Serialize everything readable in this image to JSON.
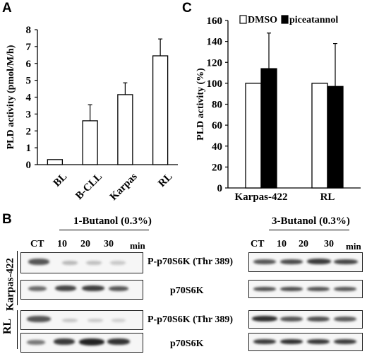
{
  "panels": {
    "a": "A",
    "b": "B",
    "c": "C"
  },
  "chart_data": [
    {
      "type": "bar",
      "panel": "A",
      "title": "",
      "xlabel": "",
      "ylabel": "PLD activity  (pmol/M/h)",
      "categories": [
        "BL",
        "B-CLL",
        "Karpas",
        "RL"
      ],
      "values": [
        0.3,
        2.6,
        4.15,
        6.45
      ],
      "errors": [
        0.0,
        0.95,
        0.7,
        1.0
      ],
      "ylim": [
        0,
        8
      ],
      "yticks": [
        0,
        1,
        2,
        3,
        4,
        5,
        6,
        7,
        8
      ],
      "bar_color": "#ffffff",
      "grid": false
    },
    {
      "type": "bar",
      "panel": "C",
      "title": "",
      "xlabel": "",
      "ylabel": "PLD activity (%)",
      "categories": [
        "Karpas-422",
        "RL"
      ],
      "series": [
        {
          "name": "DMSO",
          "values": [
            100,
            100
          ],
          "errors": [
            0,
            0
          ],
          "color": "#ffffff"
        },
        {
          "name": "piceatannol",
          "values": [
            114,
            97
          ],
          "errors": [
            34,
            41
          ],
          "color": "#000000"
        }
      ],
      "ylim": [
        0,
        160
      ],
      "yticks": [
        0,
        20,
        40,
        60,
        80,
        100,
        120,
        140,
        160
      ],
      "legend": "top",
      "grid": false
    }
  ],
  "western": {
    "left_header": "1-Butanol (0.3%)",
    "right_header": "3-Butanol (0.3%)",
    "lanes": [
      "CT",
      "10",
      "20",
      "30"
    ],
    "unit": "min",
    "cell_lines": [
      "Karpas-422",
      "RL"
    ],
    "labels": [
      "P-p70S6K (Thr 389)",
      "p70S6K",
      "P-p70S6K (Thr 389)",
      "p70S6K"
    ]
  }
}
